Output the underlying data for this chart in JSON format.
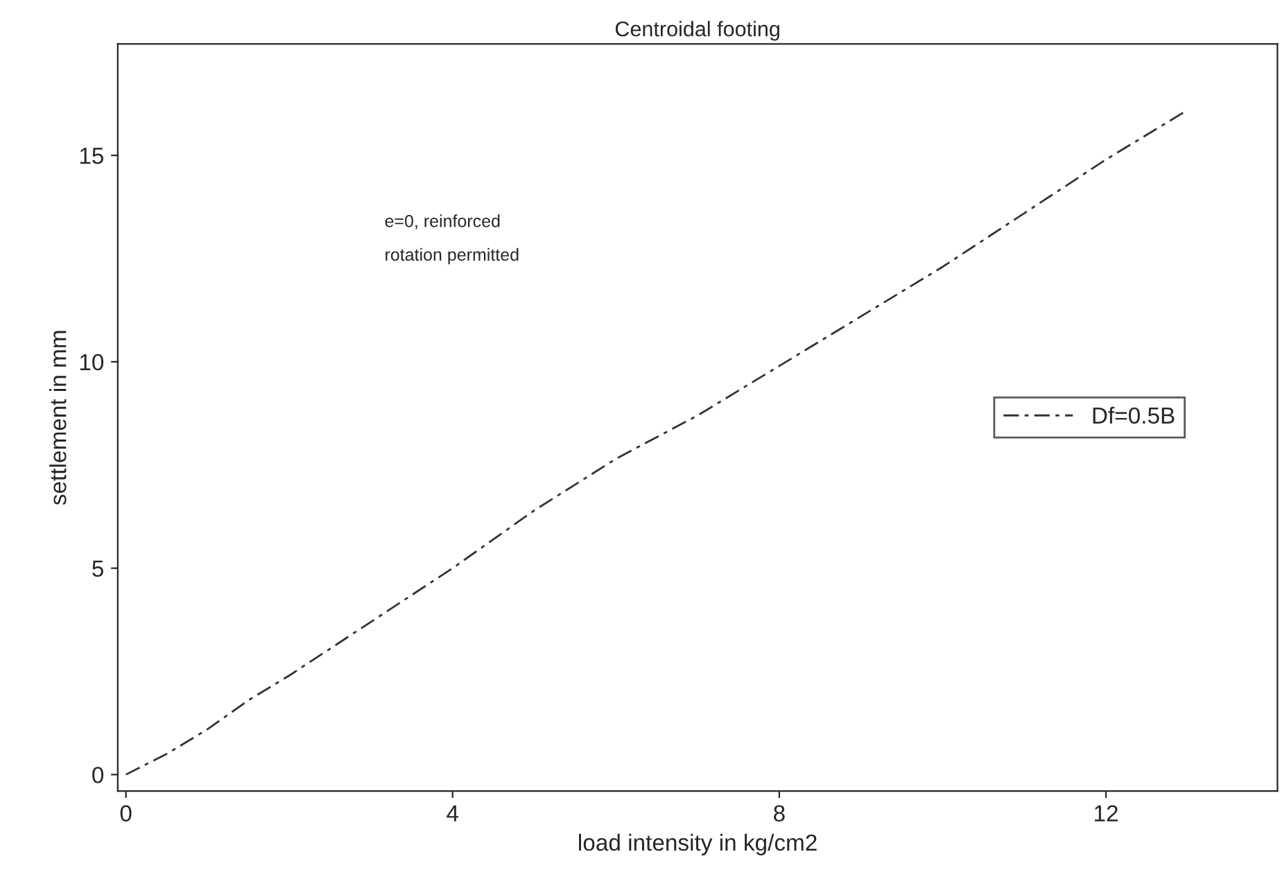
{
  "chart_data": {
    "type": "line",
    "title": "Centroidal footing",
    "xlabel": "load intensity in kg/cm2",
    "ylabel": "settlement in mm",
    "x": [
      0,
      0.5,
      1,
      1.5,
      2,
      3,
      4,
      5,
      6,
      7,
      8,
      9,
      10,
      11,
      12,
      13
    ],
    "series": [
      {
        "name": "Df=0.5B",
        "color": "#333333",
        "values": [
          0,
          0.5,
          1.1,
          1.8,
          2.4,
          3.7,
          5.0,
          6.4,
          7.65,
          8.7,
          9.9,
          11.1,
          12.3,
          13.6,
          14.9,
          16.1
        ]
      }
    ],
    "xlim": [
      -0.1,
      14.1
    ],
    "ylim": [
      -0.4,
      17.7
    ],
    "xticks": [
      0,
      4,
      8,
      12
    ],
    "yticks": [
      0,
      5,
      10,
      15
    ],
    "annotations": [
      "e=0, reinforced",
      "rotation permitted"
    ],
    "grid": false,
    "legend": "right",
    "line_style": "dashed",
    "marker": "none"
  }
}
